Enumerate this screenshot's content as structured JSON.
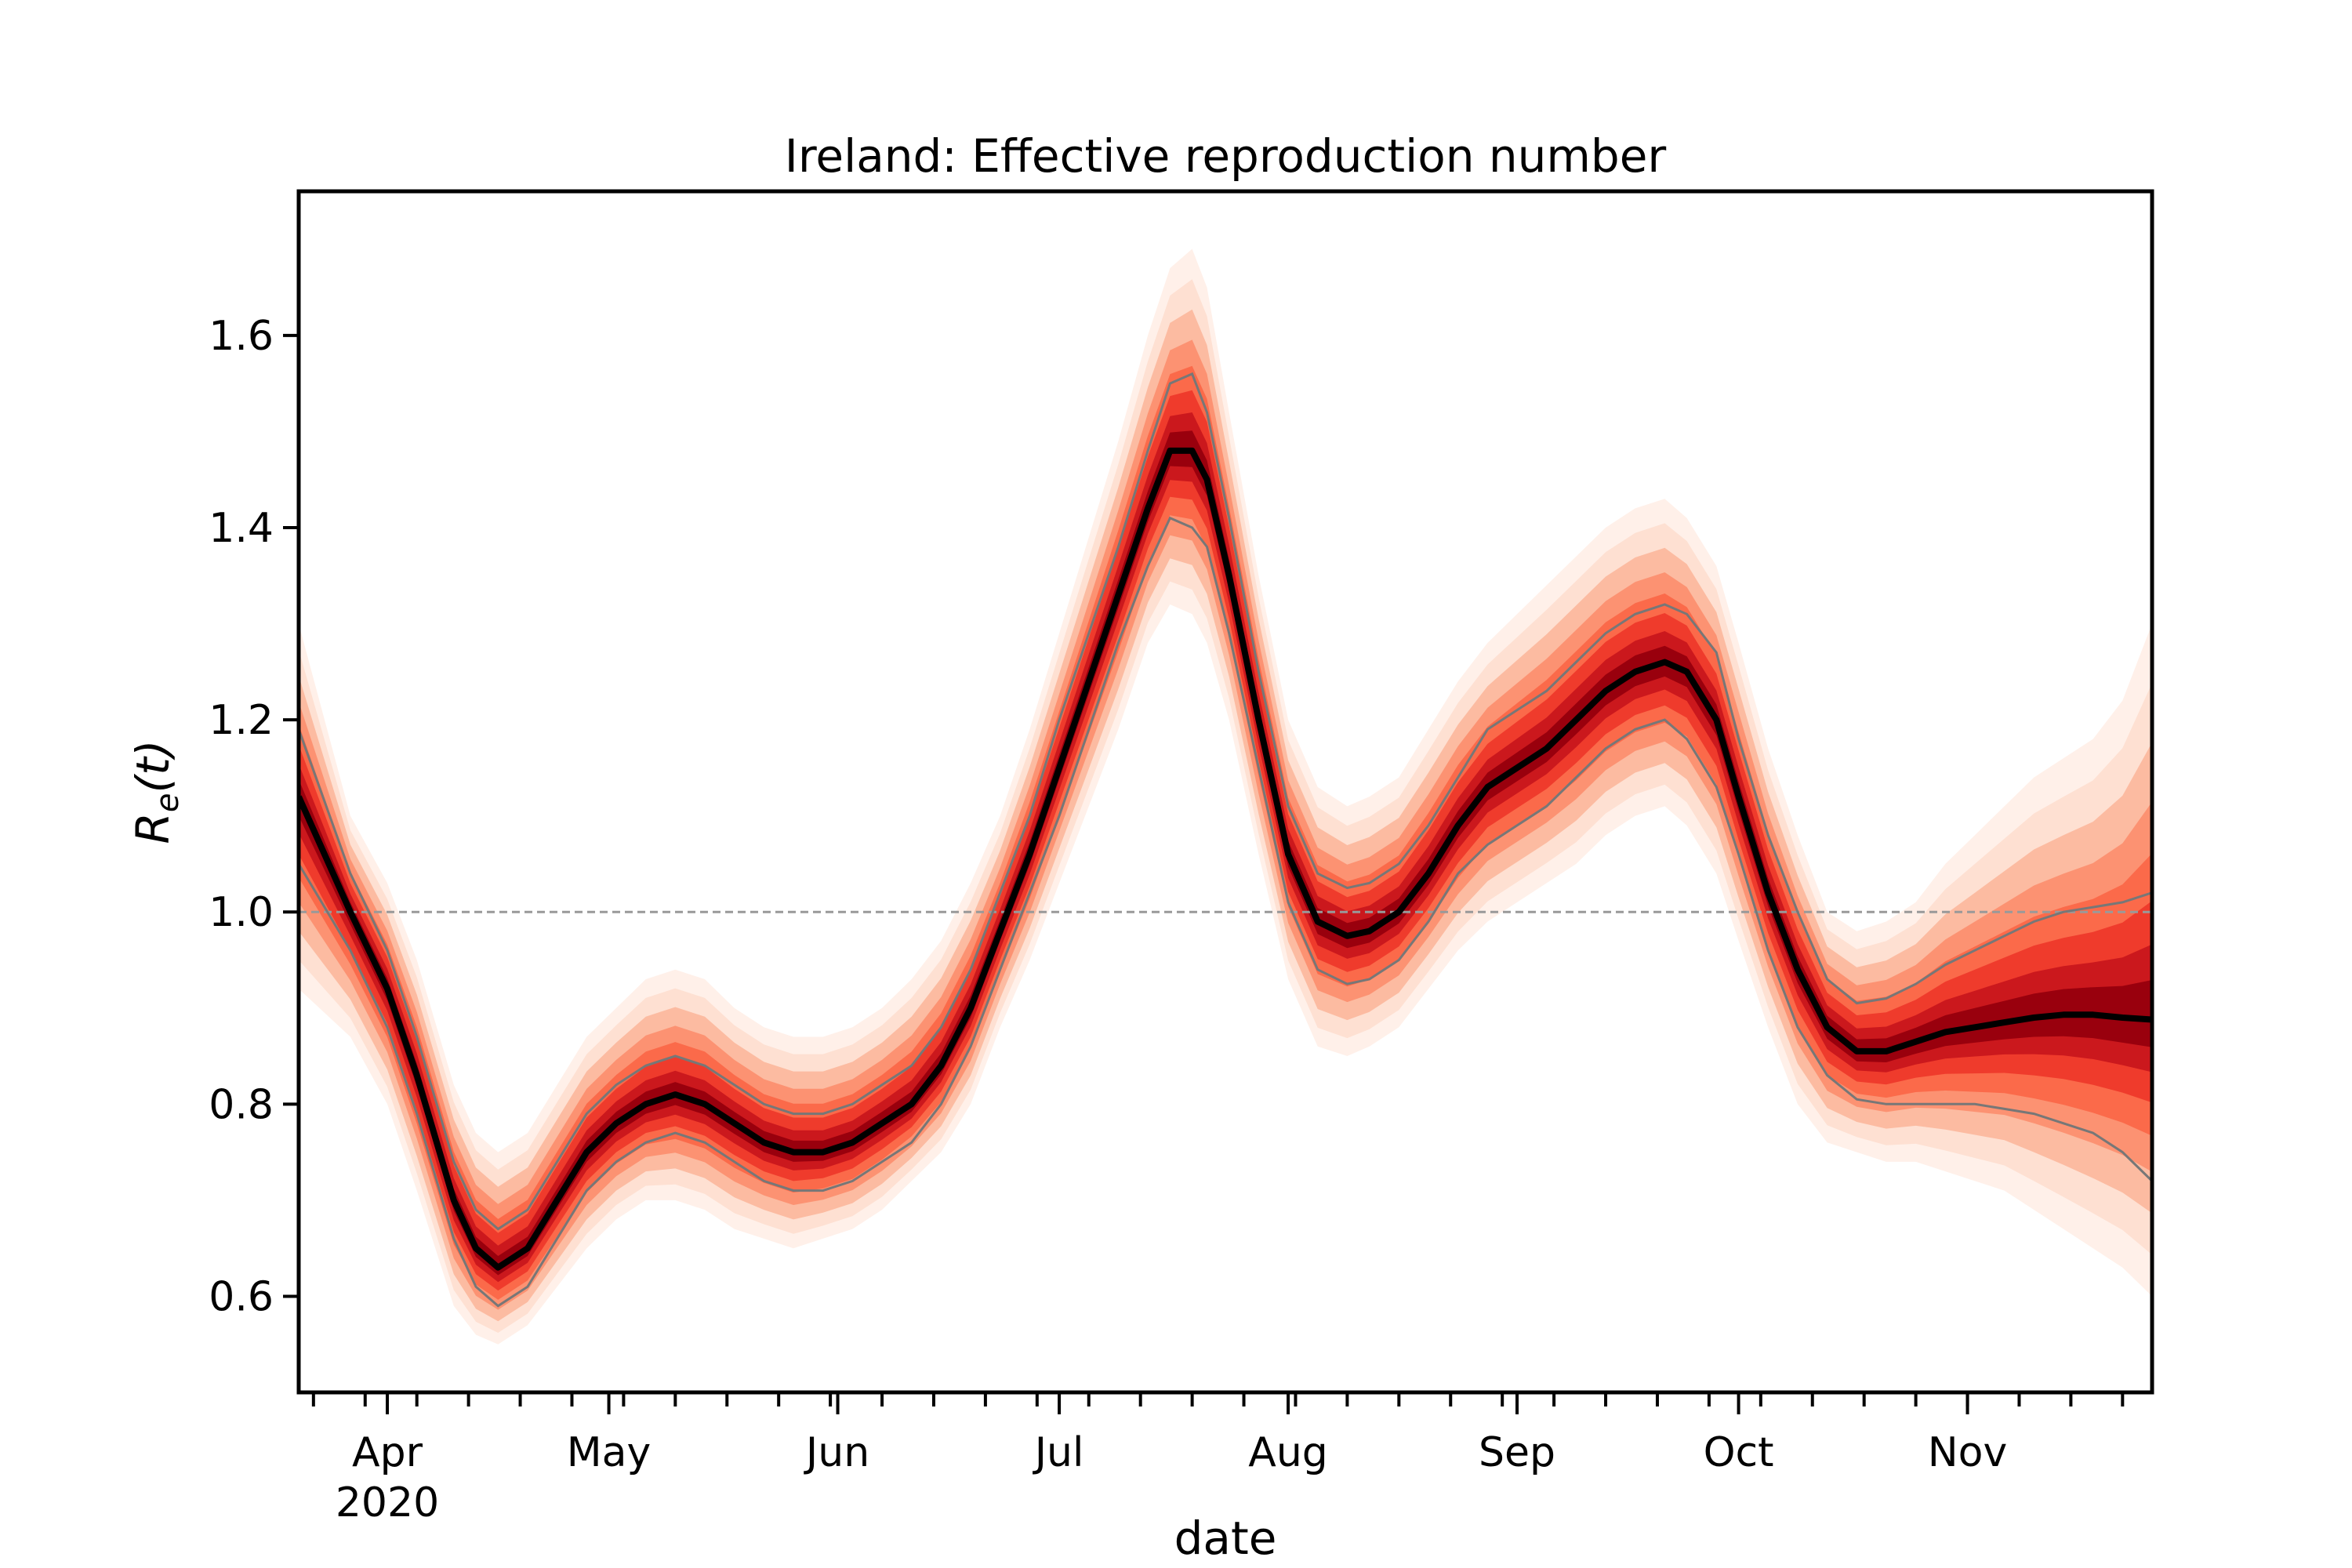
{
  "chart_data": {
    "type": "line",
    "title": "Ireland: Effective reproduction number",
    "xlabel": "date",
    "ylabel": "R_e(t)",
    "ylabel_parts": {
      "main": "R",
      "sub": "e",
      "arg": "(t)"
    },
    "x_range": [
      "2020-03-20",
      "2020-11-26"
    ],
    "ylim": [
      0.5,
      1.75
    ],
    "y_ticks": [
      0.6,
      0.8,
      1.0,
      1.2,
      1.4,
      1.6
    ],
    "y_tick_labels": [
      "0.6",
      "0.8",
      "1.0",
      "1.2",
      "1.4",
      "1.6"
    ],
    "x_ticks": [
      {
        "date": "2020-04-01",
        "label": "Apr",
        "sublabel": "2020"
      },
      {
        "date": "2020-05-01",
        "label": "May",
        "sublabel": ""
      },
      {
        "date": "2020-06-01",
        "label": "Jun",
        "sublabel": ""
      },
      {
        "date": "2020-07-01",
        "label": "Jul",
        "sublabel": ""
      },
      {
        "date": "2020-08-01",
        "label": "Aug",
        "sublabel": ""
      },
      {
        "date": "2020-09-01",
        "label": "Sep",
        "sublabel": ""
      },
      {
        "date": "2020-10-01",
        "label": "Oct",
        "sublabel": ""
      },
      {
        "date": "2020-11-01",
        "label": "Nov",
        "sublabel": ""
      }
    ],
    "reference_line": 1.0,
    "grid": false,
    "colors": {
      "median": "#000000",
      "band_outer": "#fee6dc",
      "band_inner": "#b51a1a",
      "reference": "#999999",
      "ci_line": "#777777"
    },
    "series": [
      {
        "x": [
          "2020-03-20",
          "2020-03-27",
          "2020-04-01",
          "2020-04-05",
          "2020-04-10",
          "2020-04-13",
          "2020-04-16",
          "2020-04-20",
          "2020-04-24",
          "2020-04-28",
          "2020-05-02",
          "2020-05-06",
          "2020-05-10",
          "2020-05-14",
          "2020-05-18",
          "2020-05-22",
          "2020-05-26",
          "2020-05-30",
          "2020-06-03",
          "2020-06-07",
          "2020-06-11",
          "2020-06-15",
          "2020-06-19",
          "2020-06-23",
          "2020-06-27",
          "2020-07-01",
          "2020-07-05",
          "2020-07-09",
          "2020-07-13",
          "2020-07-16",
          "2020-07-19",
          "2020-07-21",
          "2020-07-24",
          "2020-07-28",
          "2020-08-01",
          "2020-08-05",
          "2020-08-09",
          "2020-08-12",
          "2020-08-16",
          "2020-08-20",
          "2020-08-24",
          "2020-08-28",
          "2020-09-01",
          "2020-09-05",
          "2020-09-09",
          "2020-09-13",
          "2020-09-17",
          "2020-09-21",
          "2020-09-24",
          "2020-09-28",
          "2020-10-01",
          "2020-10-05",
          "2020-10-09",
          "2020-10-13",
          "2020-10-17",
          "2020-10-21",
          "2020-10-25",
          "2020-10-29",
          "2020-11-02",
          "2020-11-06",
          "2020-11-10",
          "2020-11-14",
          "2020-11-18",
          "2020-11-22",
          "2020-11-26"
        ],
        "median": [
          1.12,
          1.0,
          0.92,
          0.83,
          0.7,
          0.65,
          0.63,
          0.65,
          0.7,
          0.75,
          0.78,
          0.8,
          0.81,
          0.8,
          0.78,
          0.76,
          0.75,
          0.75,
          0.76,
          0.78,
          0.8,
          0.84,
          0.9,
          0.98,
          1.06,
          1.15,
          1.24,
          1.33,
          1.42,
          1.48,
          1.48,
          1.45,
          1.35,
          1.2,
          1.06,
          0.99,
          0.975,
          0.98,
          1.0,
          1.04,
          1.09,
          1.13,
          1.15,
          1.17,
          1.2,
          1.23,
          1.25,
          1.26,
          1.25,
          1.2,
          1.12,
          1.02,
          0.94,
          0.88,
          0.855,
          0.855,
          0.865,
          0.875,
          0.88,
          0.885,
          0.89,
          0.893,
          0.893,
          0.89,
          0.888
        ],
        "lower": [
          1.05,
          0.96,
          0.88,
          0.79,
          0.66,
          0.61,
          0.59,
          0.61,
          0.66,
          0.71,
          0.74,
          0.76,
          0.77,
          0.76,
          0.74,
          0.72,
          0.71,
          0.71,
          0.72,
          0.74,
          0.76,
          0.8,
          0.86,
          0.94,
          1.02,
          1.1,
          1.19,
          1.28,
          1.36,
          1.41,
          1.4,
          1.38,
          1.29,
          1.15,
          1.01,
          0.94,
          0.925,
          0.93,
          0.95,
          0.99,
          1.04,
          1.07,
          1.09,
          1.11,
          1.14,
          1.17,
          1.19,
          1.2,
          1.18,
          1.13,
          1.06,
          0.96,
          0.88,
          0.83,
          0.805,
          0.8,
          0.8,
          0.8,
          0.8,
          0.795,
          0.79,
          0.78,
          0.77,
          0.75,
          0.72
        ],
        "upper": [
          1.19,
          1.04,
          0.96,
          0.87,
          0.74,
          0.69,
          0.67,
          0.69,
          0.74,
          0.79,
          0.82,
          0.84,
          0.85,
          0.84,
          0.82,
          0.8,
          0.79,
          0.79,
          0.8,
          0.82,
          0.84,
          0.88,
          0.94,
          1.02,
          1.1,
          1.2,
          1.29,
          1.38,
          1.48,
          1.55,
          1.56,
          1.52,
          1.41,
          1.25,
          1.11,
          1.04,
          1.025,
          1.03,
          1.05,
          1.09,
          1.14,
          1.19,
          1.21,
          1.23,
          1.26,
          1.29,
          1.31,
          1.32,
          1.31,
          1.27,
          1.18,
          1.08,
          1.0,
          0.93,
          0.905,
          0.91,
          0.925,
          0.945,
          0.96,
          0.975,
          0.99,
          1.0,
          1.005,
          1.01,
          1.02
        ],
        "band_lower": [
          0.92,
          0.87,
          0.8,
          0.71,
          0.59,
          0.56,
          0.55,
          0.57,
          0.61,
          0.65,
          0.68,
          0.7,
          0.7,
          0.69,
          0.67,
          0.66,
          0.65,
          0.66,
          0.67,
          0.69,
          0.72,
          0.75,
          0.8,
          0.88,
          0.95,
          1.03,
          1.11,
          1.19,
          1.28,
          1.32,
          1.31,
          1.28,
          1.2,
          1.06,
          0.93,
          0.86,
          0.85,
          0.86,
          0.88,
          0.92,
          0.96,
          0.99,
          1.01,
          1.03,
          1.05,
          1.08,
          1.1,
          1.11,
          1.09,
          1.04,
          0.97,
          0.88,
          0.8,
          0.76,
          0.75,
          0.74,
          0.74,
          0.73,
          0.72,
          0.71,
          0.69,
          0.67,
          0.65,
          0.63,
          0.6
        ],
        "band_upper": [
          1.3,
          1.1,
          1.03,
          0.95,
          0.82,
          0.77,
          0.75,
          0.77,
          0.82,
          0.87,
          0.9,
          0.93,
          0.94,
          0.93,
          0.9,
          0.88,
          0.87,
          0.87,
          0.88,
          0.9,
          0.93,
          0.97,
          1.03,
          1.1,
          1.19,
          1.29,
          1.39,
          1.49,
          1.6,
          1.67,
          1.69,
          1.65,
          1.52,
          1.35,
          1.2,
          1.13,
          1.11,
          1.12,
          1.14,
          1.19,
          1.24,
          1.28,
          1.31,
          1.34,
          1.37,
          1.4,
          1.42,
          1.43,
          1.41,
          1.36,
          1.28,
          1.17,
          1.08,
          1.0,
          0.98,
          0.99,
          1.01,
          1.05,
          1.08,
          1.11,
          1.14,
          1.16,
          1.18,
          1.22,
          1.3
        ]
      }
    ]
  }
}
